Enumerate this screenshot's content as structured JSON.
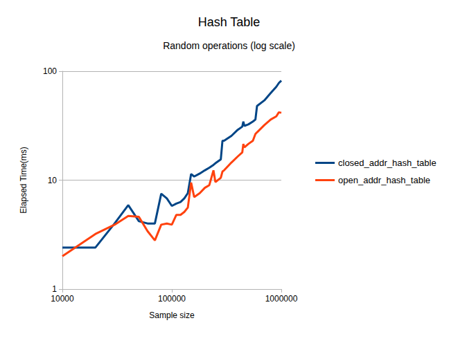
{
  "chart_data": {
    "type": "line",
    "title": "Hash Table",
    "subtitle": "Random operations (log scale)",
    "x_label": "Sample size",
    "y_label": "Elapsed Time(ms)",
    "log": true,
    "grid": true,
    "legend": "right",
    "xlim": [
      10000,
      1000000
    ],
    "xticks": [
      10000,
      100000,
      1000000
    ],
    "ylim": [
      1,
      100
    ],
    "yticks": [
      1,
      10,
      100
    ],
    "x": [
      10000,
      20000,
      30000,
      40000,
      50000,
      60000,
      70000,
      80000,
      90000,
      100000,
      110000,
      120000,
      130000,
      140000,
      150000,
      160000,
      180000,
      200000,
      220000,
      240000,
      250000,
      280000,
      290000,
      300000,
      350000,
      400000,
      440000,
      450000,
      460000,
      500000,
      550000,
      580000,
      600000,
      700000,
      800000,
      900000,
      950000,
      1000000
    ],
    "series": [
      {
        "name": "closed_addr_hash_table",
        "color": "#004586",
        "line_style": "solid",
        "marker": "none",
        "values": [
          2.4,
          2.4,
          4.0,
          5.9,
          4.2,
          4.0,
          4.0,
          7.5,
          6.8,
          5.8,
          6.1,
          6.3,
          6.8,
          7.6,
          11.4,
          10.8,
          11.5,
          12.3,
          13.0,
          13.8,
          14.3,
          15.5,
          23.0,
          23.0,
          25.5,
          29.0,
          31.0,
          34.5,
          31.5,
          32.5,
          34.5,
          36.0,
          48.0,
          54.0,
          63.0,
          72.0,
          78.0,
          82.0
        ]
      },
      {
        "name": "open_addr_hash_table",
        "color": "#ff420e",
        "line_style": "solid",
        "marker": "none",
        "values": [
          2.0,
          3.2,
          3.9,
          4.7,
          4.6,
          3.4,
          2.8,
          3.9,
          4.0,
          3.9,
          4.8,
          4.8,
          5.1,
          5.6,
          9.5,
          7.0,
          7.6,
          8.5,
          9.0,
          12.3,
          9.6,
          10.5,
          12.0,
          12.3,
          14.5,
          16.5,
          18.0,
          21.5,
          20.0,
          21.5,
          23.0,
          26.5,
          27.5,
          32.0,
          36.0,
          38.5,
          42.0,
          41.5
        ]
      }
    ]
  }
}
